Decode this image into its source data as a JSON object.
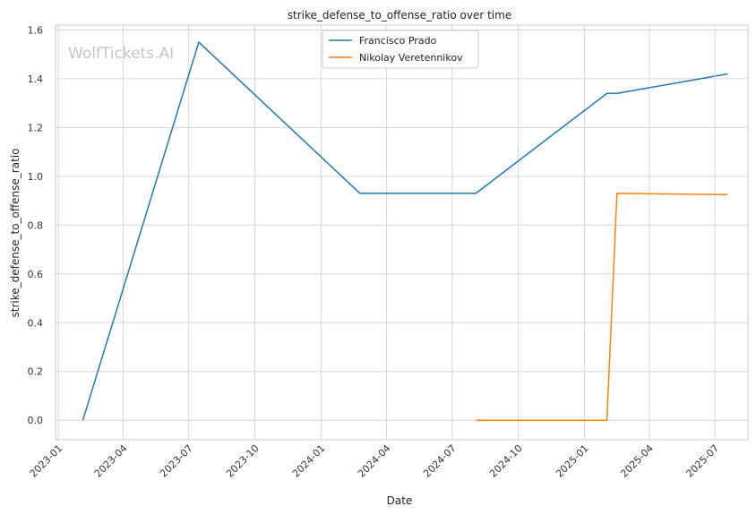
{
  "watermark": "WolfTickets.AI",
  "chart_data": {
    "type": "line",
    "title": "strike_defense_to_offense_ratio over time",
    "xlabel": "Date",
    "ylabel": "strike_defense_to_offense_ratio",
    "x_axis": "date",
    "xlim": [
      "2022-12-28",
      "2025-08-16"
    ],
    "ylim": [
      -0.08,
      1.62
    ],
    "x_ticks": [
      "2023-01",
      "2023-04",
      "2023-07",
      "2023-10",
      "2024-01",
      "2024-04",
      "2024-07",
      "2024-10",
      "2025-01",
      "2025-04",
      "2025-07"
    ],
    "y_ticks": [
      "0.0",
      "0.2",
      "0.4",
      "0.6",
      "0.8",
      "1.0",
      "1.2",
      "1.4",
      "1.6"
    ],
    "grid": true,
    "legend_position": "top-center",
    "series": [
      {
        "name": "Francisco Prado",
        "color": "#1f77b4",
        "points": [
          [
            "2023-02-04",
            0.0
          ],
          [
            "2023-07-15",
            1.55
          ],
          [
            "2024-02-24",
            0.93
          ],
          [
            "2024-08-03",
            0.93
          ],
          [
            "2025-02-01",
            1.34
          ],
          [
            "2025-02-15",
            1.34
          ],
          [
            "2025-07-19",
            1.42
          ]
        ]
      },
      {
        "name": "Nikolay Veretennikov",
        "color": "#ff7f0e",
        "points": [
          [
            "2024-08-03",
            0.0
          ],
          [
            "2025-02-01",
            0.0
          ],
          [
            "2025-02-15",
            0.93
          ],
          [
            "2025-07-19",
            0.925
          ]
        ]
      }
    ]
  }
}
